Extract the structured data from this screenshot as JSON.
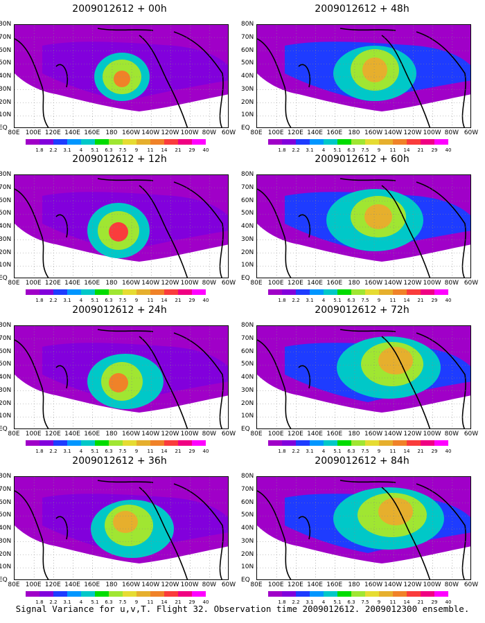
{
  "panels": [
    {
      "title": "2009012612 + 00h"
    },
    {
      "title": "2009012612 + 48h"
    },
    {
      "title": "2009012612 + 12h"
    },
    {
      "title": "2009012612 + 60h"
    },
    {
      "title": "2009012612 + 24h"
    },
    {
      "title": "2009012612 + 72h"
    },
    {
      "title": "2009012612 + 36h"
    },
    {
      "title": "2009012612 + 84h"
    }
  ],
  "axes": {
    "x_labels": [
      "80E",
      "100E",
      "120E",
      "140E",
      "160E",
      "180",
      "160W",
      "140W",
      "120W",
      "100W",
      "80W",
      "60W"
    ],
    "y_labels": [
      "80N",
      "70N",
      "60N",
      "50N",
      "40N",
      "30N",
      "20N",
      "10N",
      "EQ"
    ]
  },
  "colorbar": {
    "labels": [
      "1.8",
      "2.2",
      "3.1",
      "4",
      "5.1",
      "6.3",
      "7.5",
      "9",
      "11",
      "14",
      "21",
      "29",
      "40"
    ],
    "colors": [
      "#a000c8",
      "#8200dc",
      "#1e3cff",
      "#0096ff",
      "#00c8c8",
      "#00dc00",
      "#a0e632",
      "#e6dc32",
      "#e6af2d",
      "#f08228",
      "#fa3c3c",
      "#f00082",
      "#ff00ff"
    ]
  },
  "footer": "Signal Variance for u,v,T. Flight 32. Observation time 2009012612. 2009012300 ensemble."
}
